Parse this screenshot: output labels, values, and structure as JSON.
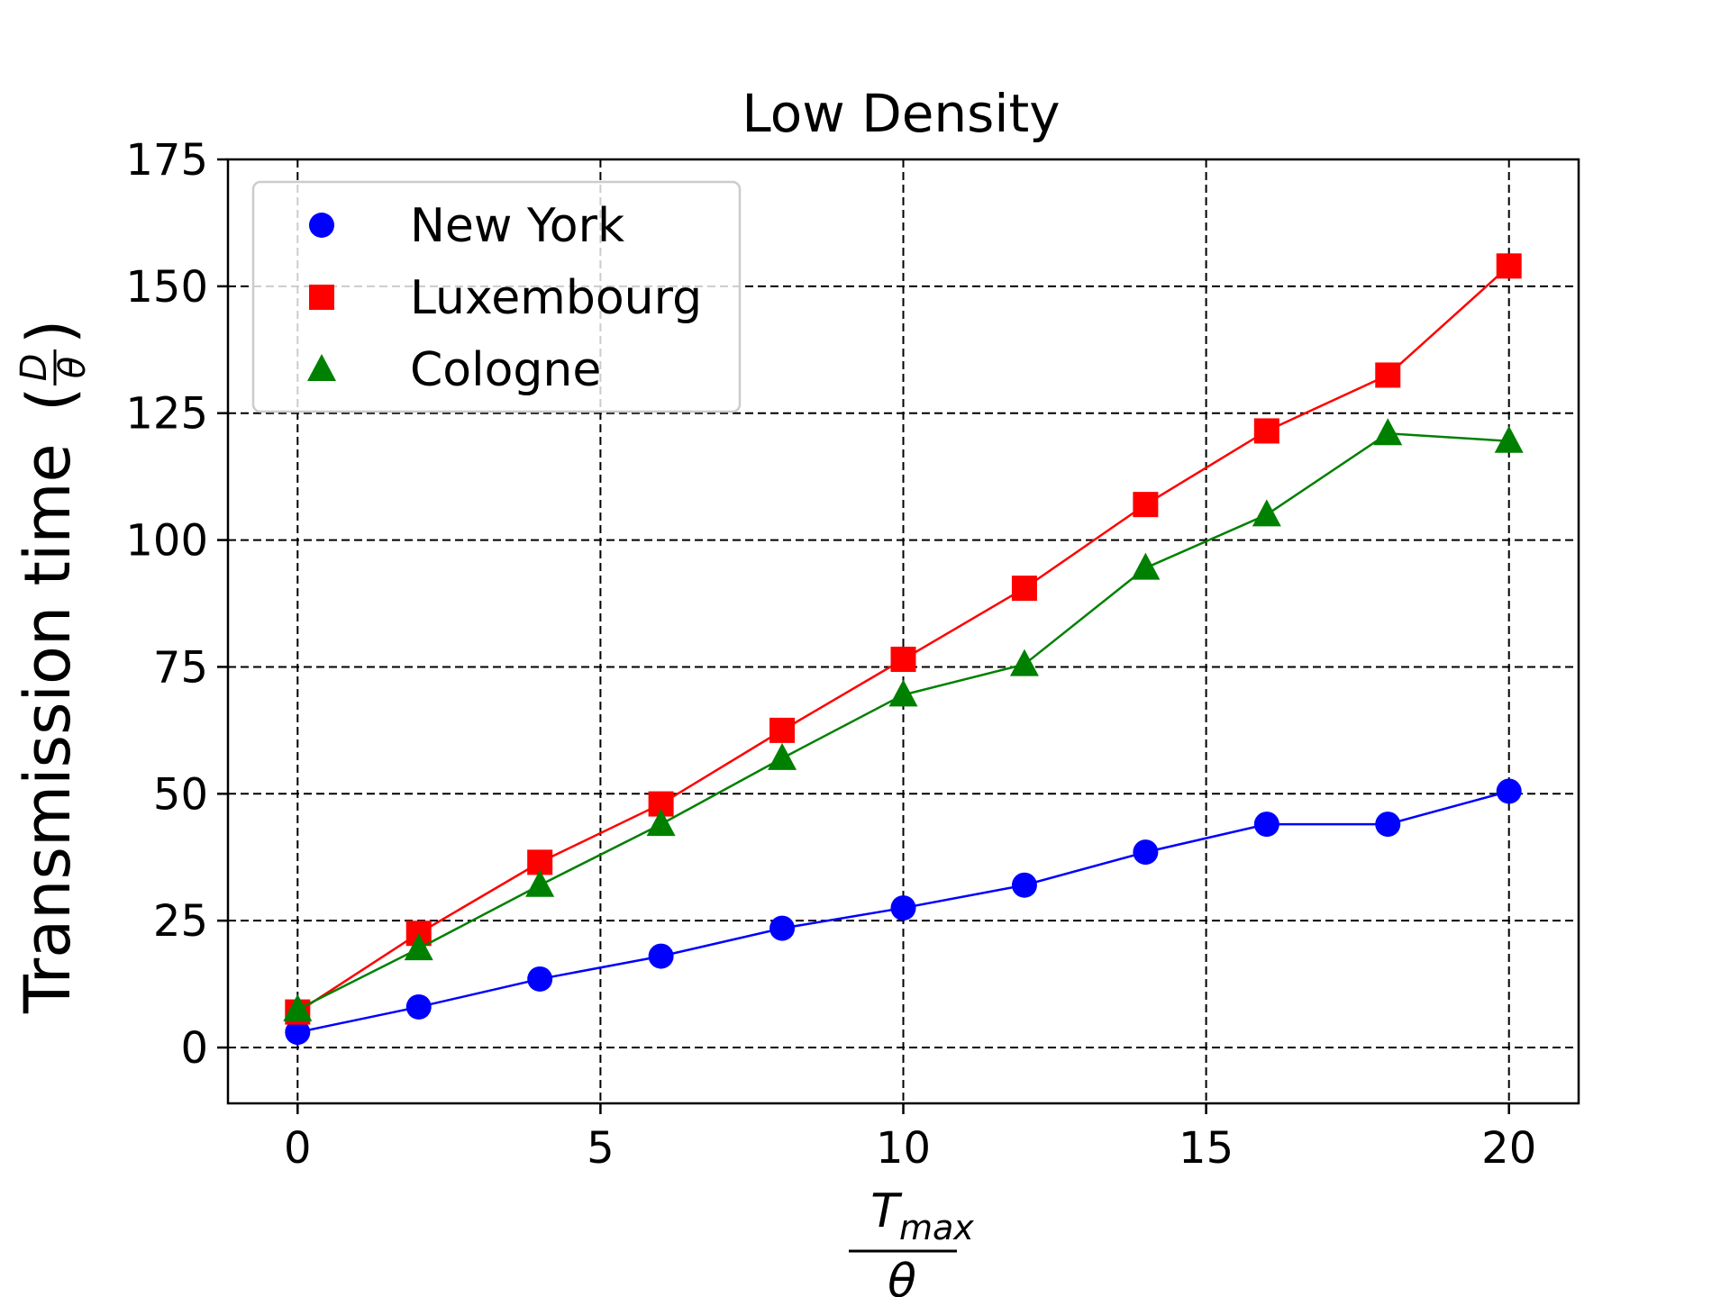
{
  "chart_data": {
    "type": "line",
    "title": "Low Density",
    "xlabel": {
      "numerator": "T",
      "numerator_sub": "max",
      "denominator": "θ"
    },
    "ylabel": {
      "text": "Transmission time",
      "frac_numerator": "D",
      "frac_denominator": "θ"
    },
    "xlim": [
      -1.15,
      21.15
    ],
    "ylim": [
      -11,
      175
    ],
    "xticks": [
      0,
      5,
      10,
      15,
      20
    ],
    "yticks": [
      0,
      25,
      50,
      75,
      100,
      125,
      150,
      175
    ],
    "grid": true,
    "legend_position": "top-left",
    "x": [
      0,
      2,
      4,
      6,
      8,
      10,
      12,
      14,
      16,
      18,
      20
    ],
    "series": [
      {
        "name": "New York",
        "color": "#0000ff",
        "marker": "circle",
        "values": [
          3,
          8,
          13.5,
          18,
          23.5,
          27.5,
          32,
          38.5,
          44,
          44,
          50.5
        ]
      },
      {
        "name": "Luxembourg",
        "color": "#ff0000",
        "marker": "square",
        "values": [
          7,
          22.5,
          36.5,
          48,
          62.5,
          76.5,
          90.5,
          107,
          121.5,
          132.5,
          154
        ]
      },
      {
        "name": "Cologne",
        "color": "#008000",
        "marker": "triangle",
        "values": [
          7.5,
          19.5,
          32,
          44,
          57,
          69.5,
          75.5,
          94.5,
          105,
          121,
          119.5
        ]
      }
    ]
  }
}
